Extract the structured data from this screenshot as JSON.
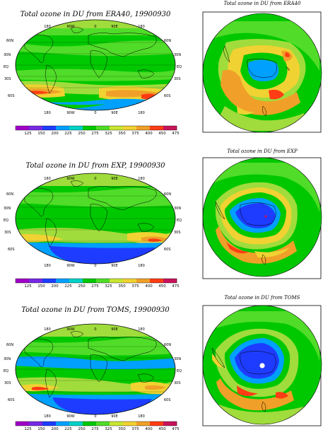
{
  "panels": [
    {
      "map_title": "Total ozone in DU from ERA40, 19900930",
      "polar_title": "Total ozone in DU from ERA40"
    },
    {
      "map_title": "Total ozone in DU from EXP, 19900930",
      "polar_title": "Total ozone in DU from EXP"
    },
    {
      "map_title": "Total ozone in DU from TOMS, 19900930",
      "polar_title": "Total ozone in DU from TOMS"
    }
  ],
  "lon_labels": [
    "180",
    "90W",
    "0",
    "90E",
    "180"
  ],
  "lat_labels": [
    "60N",
    "30N",
    "EQ",
    "30S",
    "60S"
  ],
  "colorbar": {
    "values": [
      "125",
      "150",
      "200",
      "225",
      "250",
      "275",
      "325",
      "350",
      "375",
      "400",
      "450",
      "475"
    ],
    "colors": [
      "#a000c8",
      "#7828e6",
      "#1e3cff",
      "#00a0ff",
      "#00d2c8",
      "#00c800",
      "#50dc28",
      "#c8e632",
      "#f0d232",
      "#f0a028",
      "#ff3c14",
      "#c8145a"
    ]
  },
  "ozone_palette": {
    "very_low": "#1e3cff",
    "low": "#00a0ff",
    "mid": "#00c800",
    "mid_high": "#a0dc3c",
    "high": "#f0d232",
    "very_high": "#f0a028",
    "peak": "#ff3c14"
  }
}
